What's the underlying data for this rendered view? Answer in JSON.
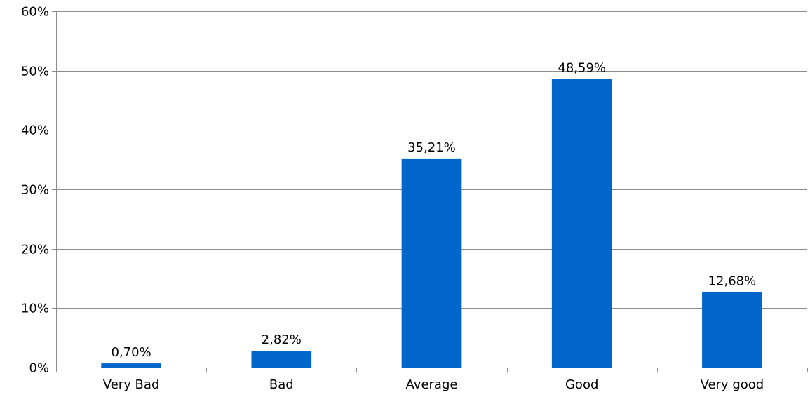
{
  "chart_data": {
    "type": "bar",
    "title": "",
    "xlabel": "",
    "ylabel": "",
    "categories": [
      "Very Bad",
      "Bad",
      "Average",
      "Good",
      "Very good"
    ],
    "values": [
      0.7,
      2.82,
      35.21,
      48.59,
      12.68
    ],
    "value_labels": [
      "0,70%",
      "2,82%",
      "35,21%",
      "48,59%",
      "12,68%"
    ],
    "ylim": [
      0,
      60
    ],
    "y_ticks": [
      0,
      10,
      20,
      30,
      40,
      50,
      60
    ],
    "y_tick_labels": [
      "0%",
      "10%",
      "20%",
      "30%",
      "40%",
      "50%",
      "60%"
    ],
    "bar_color": "#0066cc",
    "grid": true,
    "legend": "none"
  }
}
